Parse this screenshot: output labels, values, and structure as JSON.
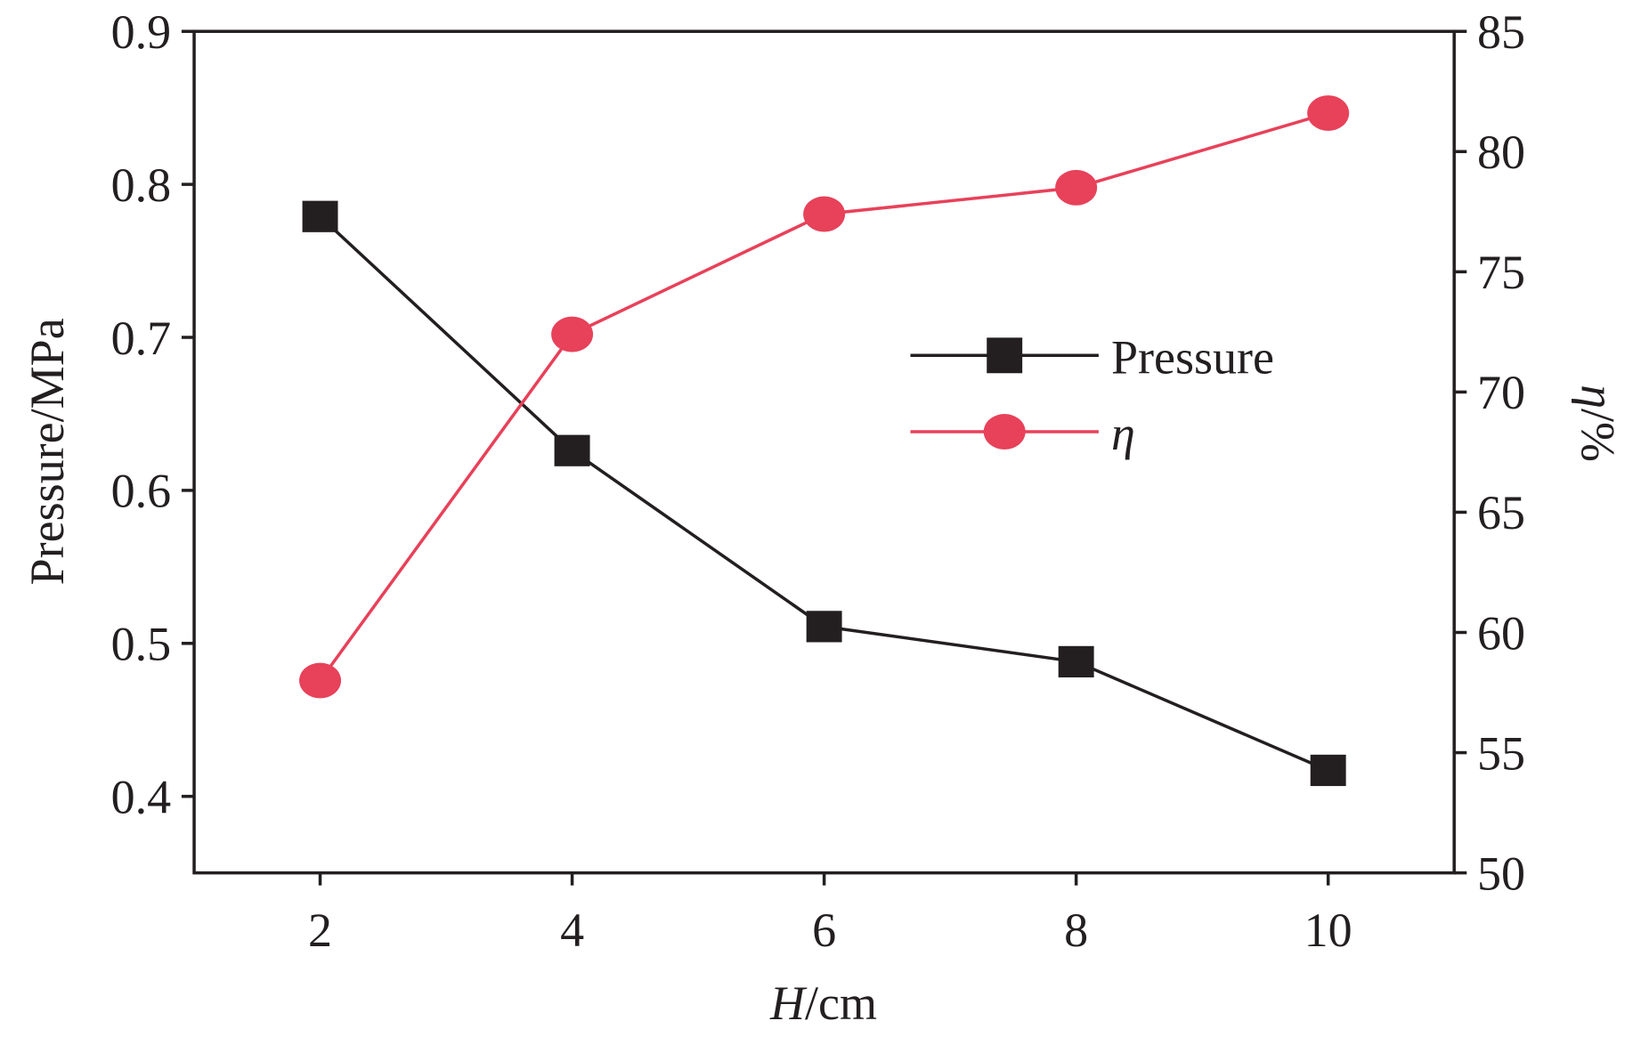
{
  "chart_data": {
    "type": "line",
    "x": [
      2,
      4,
      6,
      8,
      10
    ],
    "xlabel": {
      "italic": "H",
      "rest": "/cm"
    },
    "ylabel_left": "Pressure/MPa",
    "ylabel_right": {
      "italic": "η",
      "rest": "/%"
    },
    "xlim": [
      1,
      11
    ],
    "ylim_left": [
      0.35,
      0.9
    ],
    "ylim_right": [
      50,
      85
    ],
    "x_ticks": [
      "2",
      "4",
      "6",
      "8",
      "10"
    ],
    "y_left_ticks": [
      "0.4",
      "0.5",
      "0.6",
      "0.7",
      "0.8",
      "0.9"
    ],
    "y_right_ticks": [
      "50",
      "55",
      "60",
      "65",
      "70",
      "75",
      "80",
      "85"
    ],
    "grid": false,
    "legend_position": "center-right",
    "series": [
      {
        "name": "Pressure",
        "axis": "left",
        "marker": "square",
        "color": "#231f20",
        "values": [
          0.779,
          0.626,
          0.511,
          0.488,
          0.417
        ]
      },
      {
        "name": "η",
        "axis": "right",
        "marker": "circle",
        "color": "#e8415a",
        "values": [
          58.0,
          72.4,
          77.4,
          78.5,
          81.6
        ]
      }
    ]
  }
}
